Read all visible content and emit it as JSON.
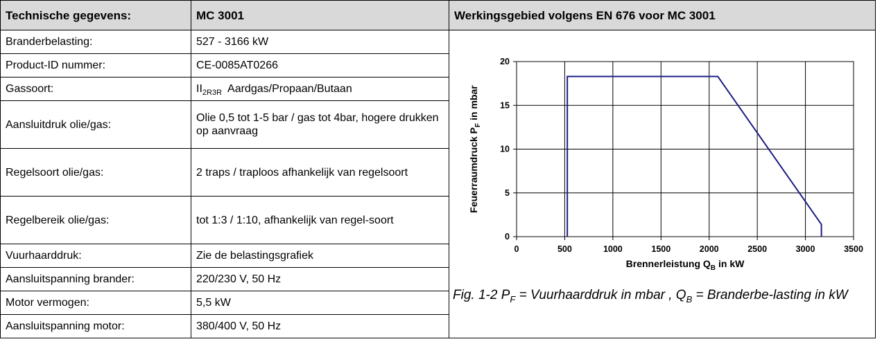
{
  "table": {
    "header": [
      "Technische gegevens:",
      "MC 3001",
      "Werkingsgebied volgens EN 676 voor MC 3001"
    ],
    "rows": [
      {
        "label": "Branderbelasting:",
        "value": "527 - 3166 kW"
      },
      {
        "label": "Product-ID nummer:",
        "value": "CE-0085AT0266"
      },
      {
        "label": "Gassoort:",
        "value": "II",
        "sub": "2R3R",
        "rest": "Aardgas/Propaan/Butaan"
      },
      {
        "label": "Aansluitdruk olie/gas:",
        "value": "Olie 0,5 tot 1-5 bar / gas tot 4bar, hogere drukken op aanvraag"
      },
      {
        "label": "Regelsoort olie/gas:",
        "value": "2 traps / traploos afhankelijk van regelsoort"
      },
      {
        "label": "Regelbereik olie/gas:",
        "value": "tot 1:3 / 1:10, afhankelijk  van regel-soort"
      },
      {
        "label": "Vuurhaarddruk:",
        "value": "Zie de belastingsgrafiek"
      },
      {
        "label": "Aansluitspanning brander:",
        "value": "220/230 V, 50 Hz"
      },
      {
        "label": "Motor vermogen:",
        "value": "5,5  kW"
      },
      {
        "label": "Aansluitspanning motor:",
        "value": "380/400 V, 50 Hz"
      }
    ]
  },
  "chart_data": {
    "type": "line",
    "x": [
      527,
      527,
      2090,
      3166,
      3166
    ],
    "y": [
      0,
      18.3,
      18.3,
      1.4,
      0
    ],
    "color": "#1c1c84",
    "xlim": [
      0,
      3500
    ],
    "ylim": [
      0,
      20
    ],
    "xticks": [
      0,
      500,
      1000,
      1500,
      2000,
      2500,
      3000,
      3500
    ],
    "yticks": [
      0,
      5,
      10,
      15,
      20
    ],
    "grid": true,
    "xlabel": {
      "text": "Brennerleistung Q",
      "sub": "B",
      "rest": "in kW"
    },
    "ylabel": {
      "text": "Feuerraumdruck P",
      "sub": "F",
      "rest": "in mbar"
    }
  },
  "caption": {
    "parts": [
      "Fig. 1-2 P",
      "F",
      "= Vuurhaarddruk in mbar , Q",
      "B",
      "= Branderbe-lasting in kW"
    ]
  }
}
